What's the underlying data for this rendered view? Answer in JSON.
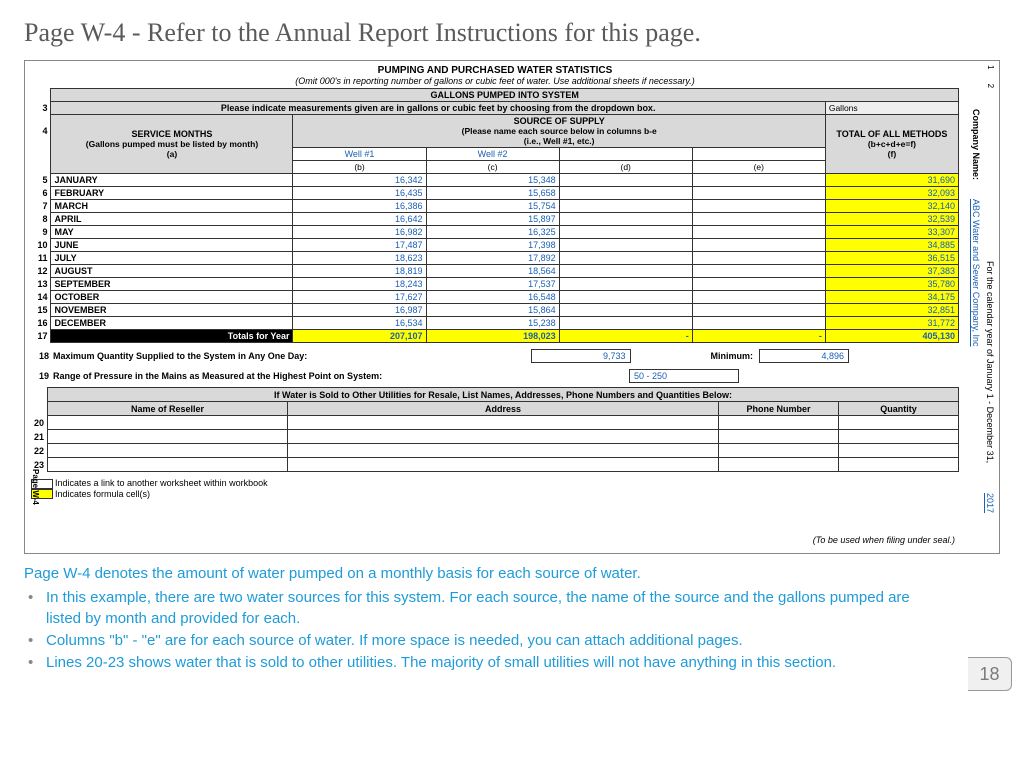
{
  "page": {
    "title": "Page W-4 - Refer to the Annual Report Instructions for this page.",
    "number": "18"
  },
  "sheet": {
    "ruler": "1   2",
    "main_title": "PUMPING AND PURCHASED WATER STATISTICS",
    "sub_title": "(Omit 000's in reporting number of gallons or cubic feet of water.   Use additional sheets if necessary.)",
    "section_title": "GALLONS PUMPED INTO SYSTEM",
    "row3_label": "Please indicate measurements given are in gallons or cubic feet by choosing from the dropdown box.",
    "gallons_label": "Gallons",
    "source_header": "SOURCE OF SUPPLY",
    "source_sub": "(Please name each source below in columns b-e",
    "source_sub2": "(i.e., Well #1, etc.)",
    "service_months": "SERVICE MONTHS",
    "service_months_sub": "(Gallons pumped must be listed by month)",
    "col_a": "(a)",
    "total_header": "TOTAL OF ALL METHODS",
    "total_sub": "(b+c+d+e=f)",
    "col_f": "(f)",
    "wells": {
      "b": "Well #1",
      "c": "Well #2"
    },
    "col_labels": {
      "b": "(b)",
      "c": "(c)",
      "d": "(d)",
      "e": "(e)"
    },
    "months": [
      {
        "n": "5",
        "name": "JANUARY",
        "b": "16,342",
        "c": "15,348",
        "f": "31,690"
      },
      {
        "n": "6",
        "name": "FEBRUARY",
        "b": "16,435",
        "c": "15,658",
        "f": "32,093"
      },
      {
        "n": "7",
        "name": "MARCH",
        "b": "16,386",
        "c": "15,754",
        "f": "32,140"
      },
      {
        "n": "8",
        "name": "APRIL",
        "b": "16,642",
        "c": "15,897",
        "f": "32,539"
      },
      {
        "n": "9",
        "name": "MAY",
        "b": "16,982",
        "c": "16,325",
        "f": "33,307"
      },
      {
        "n": "10",
        "name": "JUNE",
        "b": "17,487",
        "c": "17,398",
        "f": "34,885"
      },
      {
        "n": "11",
        "name": "JULY",
        "b": "18,623",
        "c": "17,892",
        "f": "36,515"
      },
      {
        "n": "12",
        "name": "AUGUST",
        "b": "18,819",
        "c": "18,564",
        "f": "37,383"
      },
      {
        "n": "13",
        "name": "SEPTEMBER",
        "b": "18,243",
        "c": "17,537",
        "f": "35,780"
      },
      {
        "n": "14",
        "name": "OCTOBER",
        "b": "17,627",
        "c": "16,548",
        "f": "34,175"
      },
      {
        "n": "15",
        "name": "NOVEMBER",
        "b": "16,987",
        "c": "15,864",
        "f": "32,851"
      },
      {
        "n": "16",
        "name": "DECEMBER",
        "b": "16,534",
        "c": "15,238",
        "f": "31,772"
      }
    ],
    "totals_row": {
      "n": "17",
      "label": "Totals for Year",
      "b": "207,107",
      "c": "198,023",
      "d": "-",
      "e": "-",
      "f": "405,130"
    },
    "line18": {
      "n": "18",
      "label": "Maximum Quantity Supplied to the System in Any One Day:",
      "max": "9,733",
      "min_label": "Minimum:",
      "min": "4,896"
    },
    "line19": {
      "n": "19",
      "label": "Range of Pressure in the Mains as Measured at the Highest Point on System:",
      "val": "50 - 250"
    },
    "resale_title": "If Water is Sold to Other Utilities for Resale, List Names, Addresses, Phone Numbers and Quantities Below:",
    "resale_cols": {
      "reseller": "Name of Reseller",
      "address": "Address",
      "phone": "Phone Number",
      "qty": "Quantity"
    },
    "resale_rows": [
      "20",
      "21",
      "22",
      "23"
    ],
    "legend1": "Indicates a link to another worksheet within workbook",
    "legend2": "Indicates formula cell(s)",
    "seal_note": "(To be used when filing under seal.)",
    "rownums": {
      "r3": "3",
      "r4": "4"
    }
  },
  "side": {
    "company_label": "Company Name:",
    "company_value": "ABC Water and Sewer Company, Inc",
    "year_label": "For the calendar year of January 1 - December 31,",
    "year_value": "2017",
    "page_label": "Page W-4"
  },
  "commentary": {
    "lead": "Page W-4 denotes the amount of water pumped on a monthly basis for each source of water.",
    "b1": "In this example, there are two water sources for this system.  For each source,  the name of the source and the gallons pumped are listed by month and provided for each.",
    "b2": "Columns \"b\" - \"e\" are for each source of water.  If more space is needed, you can attach additional pages.",
    "b3": "Lines 20-23 shows water that is sold to other utilities.  The majority of small utilities will not have anything in this section."
  },
  "colors": {
    "yellow": "#ffff00",
    "grey": "#d9d9d9",
    "link_blue": "#1a5fb4",
    "comment_blue": "#1e9bd8"
  }
}
